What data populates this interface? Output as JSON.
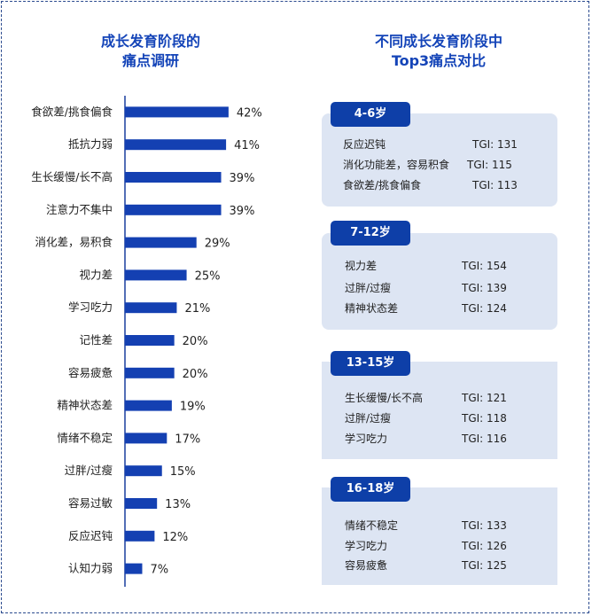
{
  "left_title": [
    "成长发育阶段的",
    "痛点调研"
  ],
  "right_title": [
    "不同成长发育阶段中",
    "Top3痛点对比"
  ],
  "colors": {
    "bar": "#1440b2",
    "title": "#1444b8",
    "tab": "#0e3fa8",
    "panel": "#dde5f3"
  },
  "chart_data": {
    "type": "bar",
    "orientation": "horizontal",
    "title": "成长发育阶段的痛点调研",
    "categories": [
      "食欲差/挑食偏食",
      "抵抗力弱",
      "生长缓慢/长不高",
      "注意力不集中",
      "消化差，易积食",
      "视力差",
      "学习吃力",
      "记性差",
      "容易疲惫",
      "精神状态差",
      "情绪不稳定",
      "过胖/过瘦",
      "容易过敏",
      "反应迟钝",
      "认知力弱"
    ],
    "values": [
      42,
      41,
      39,
      39,
      29,
      25,
      21,
      20,
      20,
      19,
      17,
      15,
      13,
      12,
      7
    ],
    "value_labels": [
      "42%",
      "41%",
      "39%",
      "39%",
      "29%",
      "25%",
      "21%",
      "20%",
      "20%",
      "19%",
      "17%",
      "15%",
      "13%",
      "12%",
      "7%"
    ],
    "unit": "%",
    "xlim": [
      0,
      60
    ],
    "grid": false
  },
  "groups": [
    {
      "tab": "4-6岁",
      "items": [
        {
          "label": "反应迟钝",
          "tgi": "TGI: 131"
        },
        {
          "label": "消化功能差，容易积食",
          "tgi": "TGI: 115"
        },
        {
          "label": "食欲差/挑食偏食",
          "tgi": "TGI: 113"
        }
      ]
    },
    {
      "tab": "7-12岁",
      "items": [
        {
          "label": "视力差",
          "tgi": "TGI: 154"
        },
        {
          "label": "过胖/过瘦",
          "tgi": "TGI: 139"
        },
        {
          "label": "精神状态差",
          "tgi": "TGI: 124"
        }
      ]
    },
    {
      "tab": "13-15岁",
      "items": [
        {
          "label": "生长缓慢/长不高",
          "tgi": "TGI: 121"
        },
        {
          "label": "过胖/过瘦",
          "tgi": "TGI: 118"
        },
        {
          "label": "学习吃力",
          "tgi": "TGI: 116"
        }
      ]
    },
    {
      "tab": "16-18岁",
      "items": [
        {
          "label": "情绪不稳定",
          "tgi": "TGI: 133"
        },
        {
          "label": "学习吃力",
          "tgi": "TGI: 126"
        },
        {
          "label": "容易疲惫",
          "tgi": "TGI: 125"
        }
      ]
    }
  ]
}
